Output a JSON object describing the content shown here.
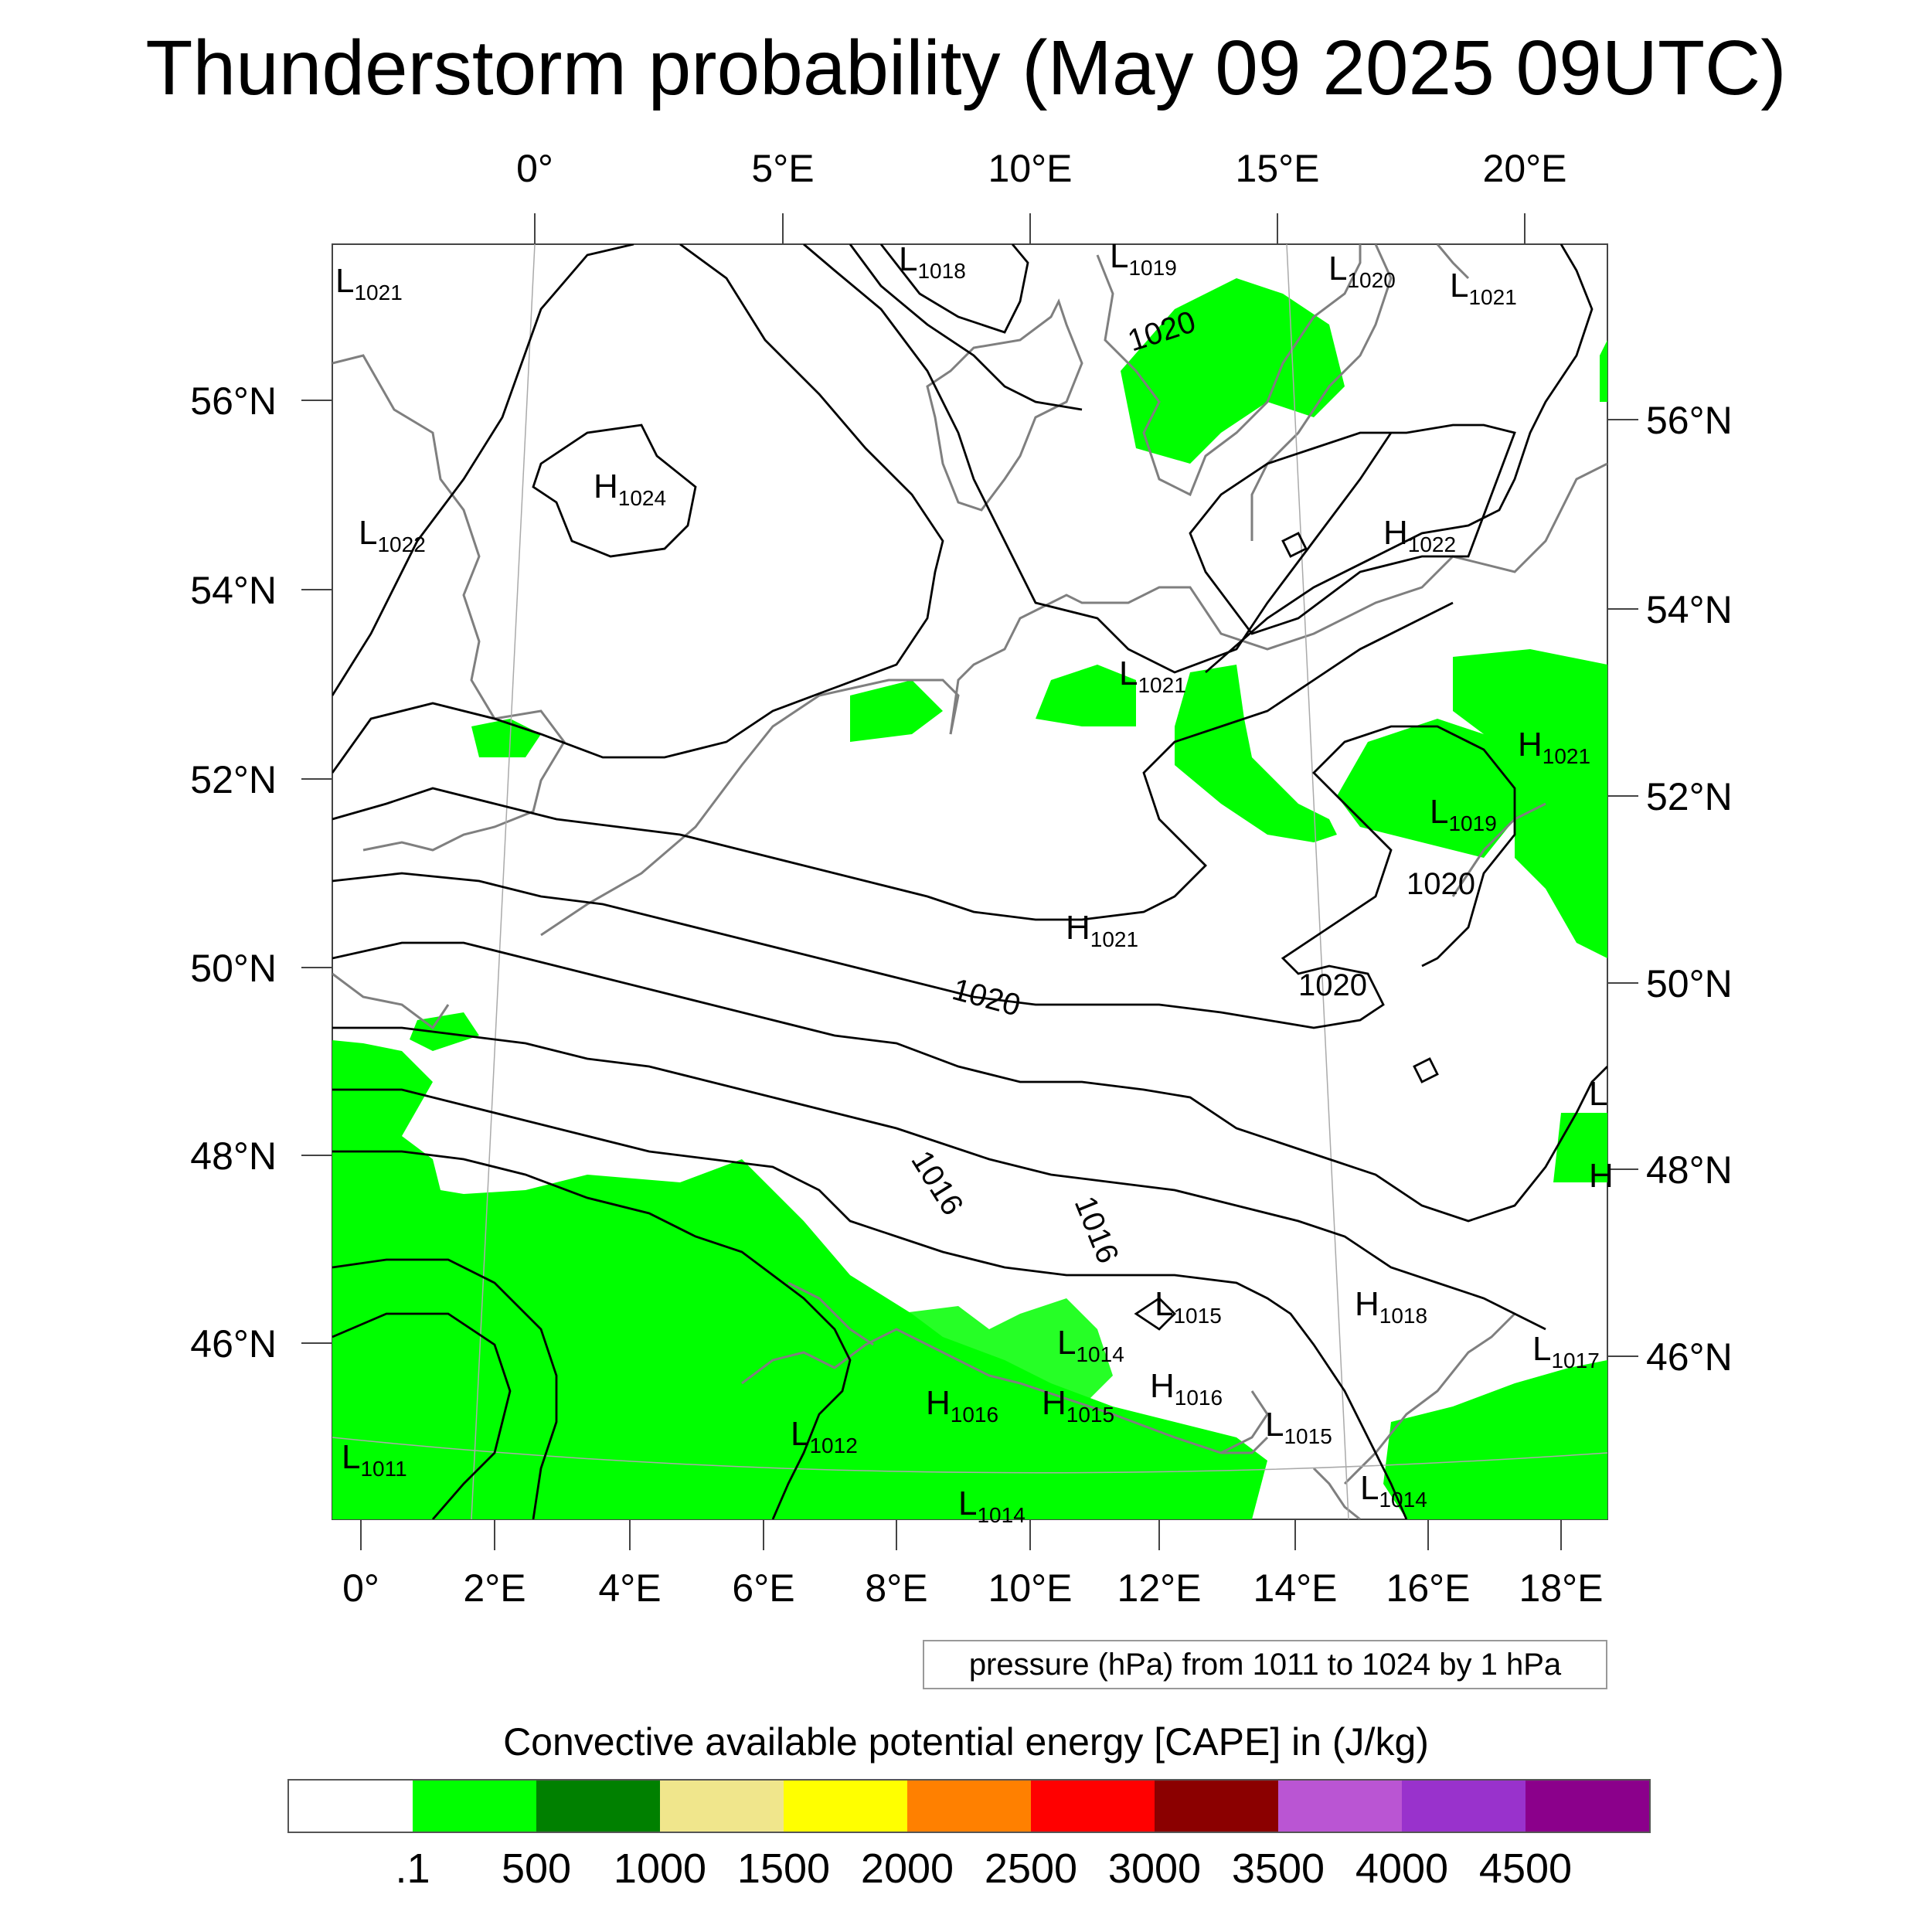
{
  "title": "Thunderstorm probability (May 09 2025 09UTC)",
  "top_lon_labels": [
    "0°",
    "5°E",
    "10°E",
    "15°E",
    "20°E"
  ],
  "left_lat_labels": [
    "56°N",
    "54°N",
    "52°N",
    "50°N",
    "48°N",
    "46°N"
  ],
  "right_lat_labels": [
    "56°N",
    "54°N",
    "52°N",
    "50°N",
    "48°N",
    "46°N"
  ],
  "bottom_lon_labels": [
    "0°",
    "2°E",
    "4°E",
    "6°E",
    "8°E",
    "10°E",
    "12°E",
    "14°E",
    "16°E",
    "18°E"
  ],
  "pressure_centers": [
    {
      "type": "L",
      "value": "1021",
      "name": "l1021-nw"
    },
    {
      "type": "L",
      "value": "1018",
      "name": "l1018-north"
    },
    {
      "type": "L",
      "value": "1019",
      "name": "l1019-north"
    },
    {
      "type": "L",
      "value": "1020",
      "name": "l1020-north"
    },
    {
      "type": "L",
      "value": "1021",
      "name": "l1021-ne"
    },
    {
      "type": "H",
      "value": "1024",
      "name": "h1024-northsea"
    },
    {
      "type": "L",
      "value": "1022",
      "name": "l1022-west"
    },
    {
      "type": "H",
      "value": "1022",
      "name": "h1022-baltic"
    },
    {
      "type": "L",
      "value": "1021",
      "name": "l1021-germany"
    },
    {
      "type": "H",
      "value": "1021",
      "name": "h1021-east"
    },
    {
      "type": "L",
      "value": "1019",
      "name": "l1019-poland"
    },
    {
      "type": "H",
      "value": "1021",
      "name": "h1021-central"
    },
    {
      "type": "L",
      "value": "1015",
      "name": "l1015-alps"
    },
    {
      "type": "H",
      "value": "1018",
      "name": "h1018-east"
    },
    {
      "type": "L",
      "value": "1014",
      "name": "l1014-alps"
    },
    {
      "type": "L",
      "value": "1017",
      "name": "l1017-se"
    },
    {
      "type": "H",
      "value": "1016",
      "name": "h1016-alps-west"
    },
    {
      "type": "H",
      "value": "1015",
      "name": "h1015-alps"
    },
    {
      "type": "H",
      "value": "1016",
      "name": "h1016-alps-east"
    },
    {
      "type": "L",
      "value": "1012",
      "name": "l1012-italy"
    },
    {
      "type": "L",
      "value": "1015",
      "name": "l1015-slovenia"
    },
    {
      "type": "L",
      "value": "1011",
      "name": "l1011-sw"
    },
    {
      "type": "L",
      "value": "1014",
      "name": "l1014-italy"
    },
    {
      "type": "L",
      "value": "1014",
      "name": "l1014-croatia"
    },
    {
      "type": "L",
      "value": "",
      "name": "l-east-edge"
    },
    {
      "type": "H",
      "value": "",
      "name": "h-east-edge"
    }
  ],
  "contour_labels": [
    "1020",
    "1020",
    "1020",
    "1020",
    "1016",
    "1016"
  ],
  "info_box": "pressure (hPa) from 1011 to 1024 by 1 hPa",
  "colorbar": {
    "title": "Convective available potential energy [CAPE] in (J/kg)",
    "colors": [
      "#ffffff",
      "#00ff00",
      "#008000",
      "#f0e68c",
      "#ffff00",
      "#ff8000",
      "#ff0000",
      "#8b0000",
      "#ba55d3",
      "#9932cc",
      "#8b008b"
    ],
    "labels": [
      ".1",
      "500",
      "1000",
      "1500",
      "2000",
      "2500",
      "3000",
      "3500",
      "4000",
      "4500"
    ]
  }
}
